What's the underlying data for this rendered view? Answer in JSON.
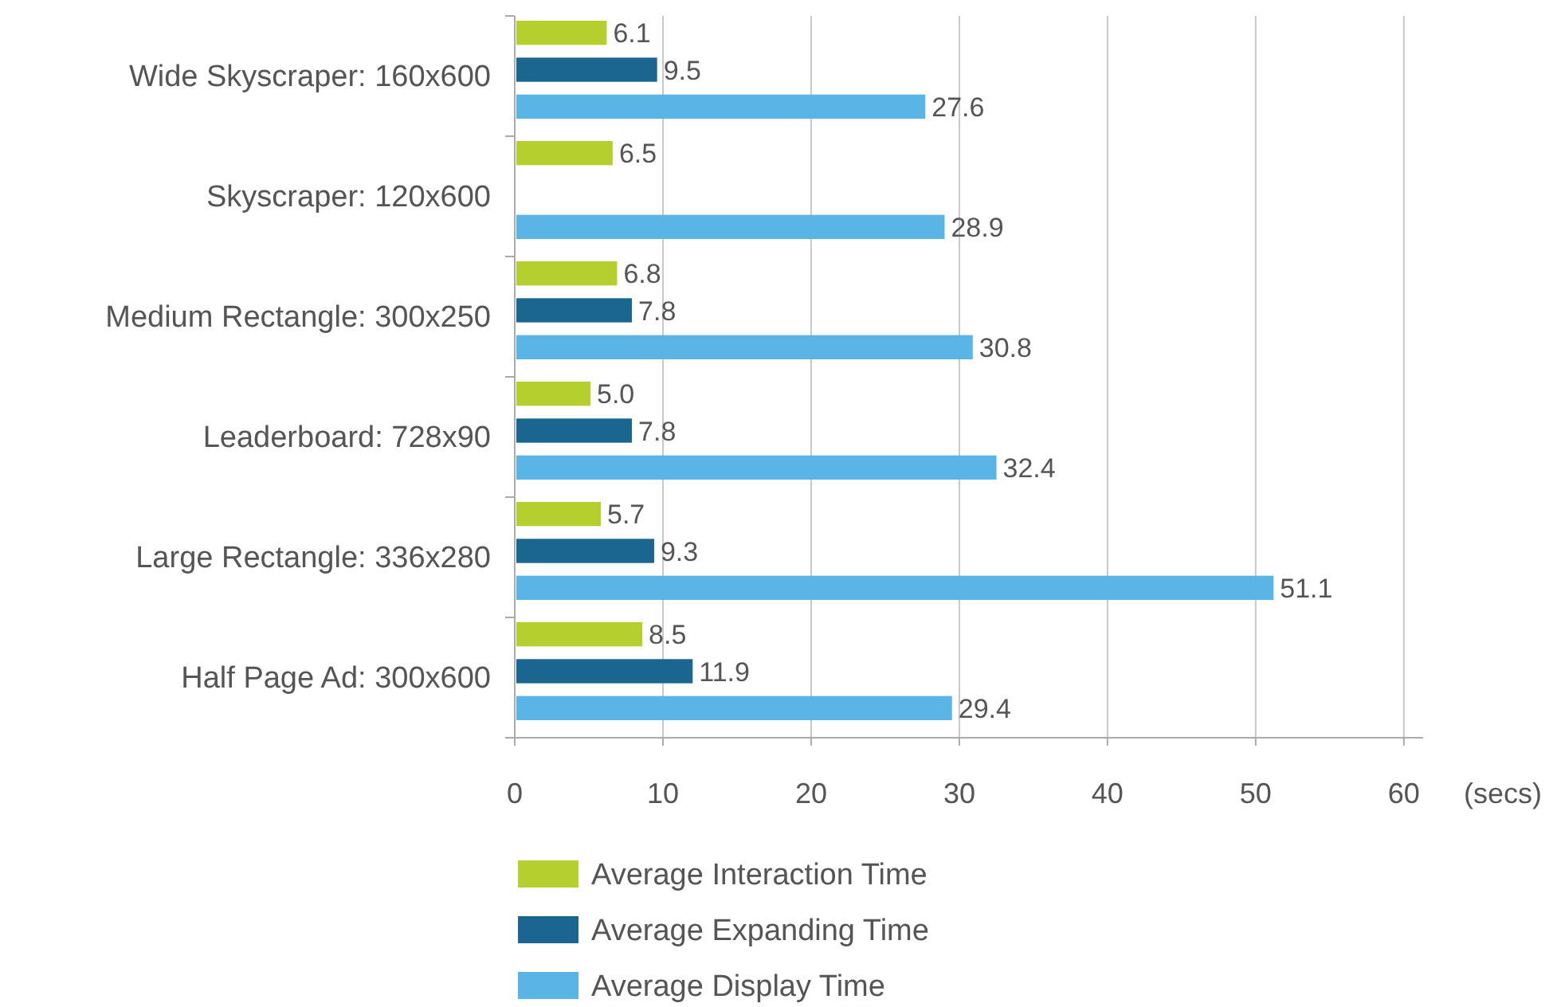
{
  "chart_data": {
    "type": "bar",
    "orientation": "horizontal",
    "categories": [
      "Wide Skyscraper: 160x600",
      "Skyscraper: 120x600",
      "Medium Rectangle: 300x250",
      "Leaderboard: 728x90",
      "Large Rectangle: 336x280",
      "Half Page Ad: 300x600"
    ],
    "series": [
      {
        "name": "Average Interaction Time",
        "color": "#b5cf2e",
        "values": [
          6.1,
          6.5,
          6.8,
          5.0,
          5.7,
          8.5
        ],
        "value_labels": [
          "6.1",
          "6.5",
          "6.8",
          "5.0",
          "5.7",
          "8.5"
        ]
      },
      {
        "name": "Average Expanding Time",
        "color": "#1b6690",
        "values": [
          9.5,
          null,
          7.8,
          7.8,
          9.3,
          11.9
        ],
        "value_labels": [
          "9.5",
          null,
          "7.8",
          "7.8",
          "9.3",
          "11.9"
        ]
      },
      {
        "name": "Average Display Time",
        "color": "#5ab5e6",
        "values": [
          27.6,
          28.9,
          30.8,
          32.4,
          51.1,
          29.4
        ],
        "value_labels": [
          "27.6",
          "28.9",
          "30.8",
          "32.4",
          "51.1",
          "29.4"
        ]
      }
    ],
    "xlabel": "(secs)",
    "xlim": [
      0,
      61.3
    ],
    "xticks": [
      0,
      10,
      20,
      30,
      40,
      50,
      60
    ],
    "grid": "x",
    "legend": "bottom"
  }
}
